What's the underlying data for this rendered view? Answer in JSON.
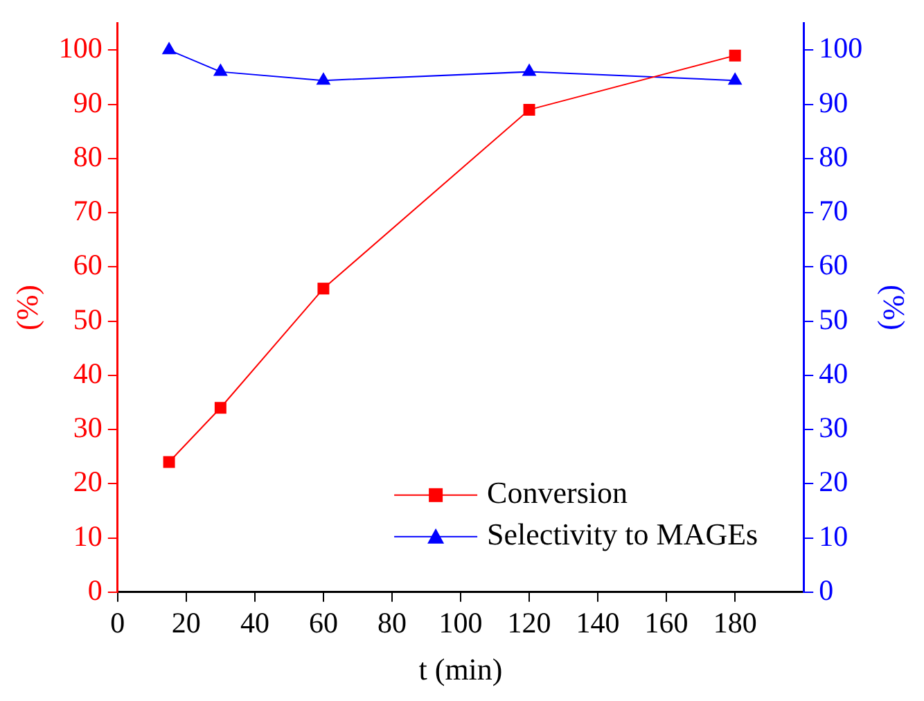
{
  "chart_data": {
    "type": "line",
    "xlabel": "t (min)",
    "ylabel": "(%)",
    "y2label": "(%)",
    "x": [
      15,
      30,
      60,
      120,
      180
    ],
    "xlim": [
      0,
      200
    ],
    "xticks": [
      0,
      20,
      40,
      60,
      80,
      100,
      120,
      140,
      160,
      180
    ],
    "ylim": [
      0,
      105
    ],
    "yticks": [
      0,
      10,
      20,
      30,
      40,
      50,
      60,
      70,
      80,
      90,
      100
    ],
    "y2lim": [
      0,
      105
    ],
    "y2ticks": [
      0,
      10,
      20,
      30,
      40,
      50,
      60,
      70,
      80,
      90,
      100
    ],
    "series": [
      {
        "name": "Conversion",
        "color": "#ff0000",
        "marker": "square",
        "values": [
          24,
          34,
          56,
          89,
          99
        ]
      },
      {
        "name": "Selectivity to MAGEs",
        "color": "#0000ff",
        "marker": "triangle",
        "axis": "y2",
        "values": [
          100,
          96,
          94.4,
          96,
          94.4
        ]
      }
    ],
    "grid": false,
    "legend": "bottom right",
    "line_style": "solid"
  }
}
